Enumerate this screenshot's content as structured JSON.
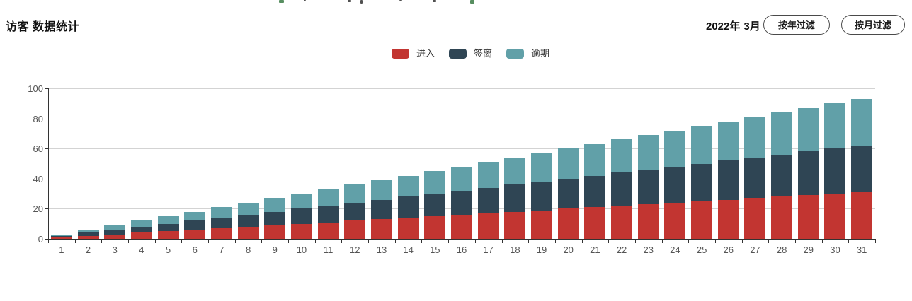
{
  "page": {
    "title": "访客 数据统计",
    "period": {
      "year": "2022年",
      "month": "3月"
    },
    "filters": {
      "year_button": "按年过滤",
      "month_button": "按月过滤"
    }
  },
  "legend": [
    {
      "label": "进入",
      "color": "#c23531"
    },
    {
      "label": "签离",
      "color": "#2f4554"
    },
    {
      "label": "逾期",
      "color": "#61a0a8"
    }
  ],
  "chart_data": {
    "type": "bar",
    "stacked": true,
    "title": "访客 数据统计",
    "xlabel": "",
    "ylabel": "",
    "ylim": [
      0,
      100
    ],
    "yticks": [
      0,
      20,
      40,
      60,
      80,
      100
    ],
    "grid": true,
    "legend_position": "top-center",
    "categories": [
      "1",
      "2",
      "3",
      "4",
      "5",
      "6",
      "7",
      "8",
      "9",
      "10",
      "11",
      "12",
      "13",
      "14",
      "15",
      "16",
      "17",
      "18",
      "19",
      "20",
      "21",
      "22",
      "23",
      "24",
      "25",
      "26",
      "27",
      "28",
      "29",
      "30",
      "31"
    ],
    "series": [
      {
        "name": "进入",
        "color": "#c23531",
        "values": [
          1,
          2,
          3,
          4,
          5,
          6,
          7,
          8,
          9,
          10,
          11,
          12,
          13,
          14,
          15,
          16,
          17,
          18,
          19,
          20,
          21,
          22,
          23,
          24,
          25,
          26,
          27,
          28,
          29,
          30,
          31
        ]
      },
      {
        "name": "签离",
        "color": "#2f4554",
        "values": [
          1,
          2,
          3,
          4,
          5,
          6,
          7,
          8,
          9,
          10,
          11,
          12,
          13,
          14,
          15,
          16,
          17,
          18,
          19,
          20,
          21,
          22,
          23,
          24,
          25,
          26,
          27,
          28,
          29,
          30,
          31
        ]
      },
      {
        "name": "逾期",
        "color": "#61a0a8",
        "values": [
          1,
          2,
          3,
          4,
          5,
          6,
          7,
          8,
          9,
          10,
          11,
          12,
          13,
          14,
          15,
          16,
          17,
          18,
          19,
          20,
          21,
          22,
          23,
          24,
          25,
          26,
          27,
          28,
          29,
          30,
          31
        ]
      }
    ]
  }
}
